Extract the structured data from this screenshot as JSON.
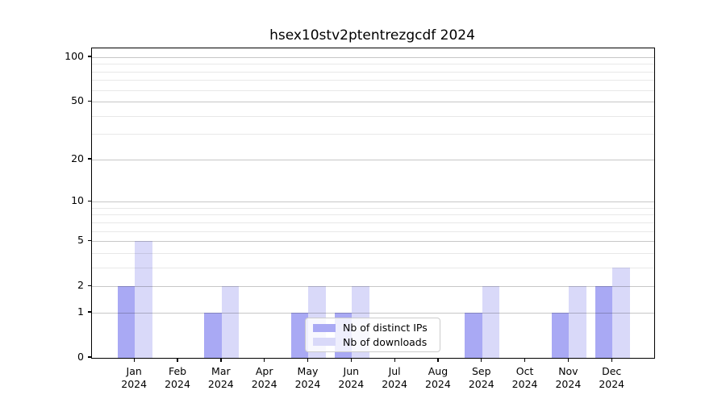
{
  "figure": {
    "background": "#ffffff",
    "axis_color": "#000000"
  },
  "chart_data": {
    "type": "bar",
    "title": "hsex10stv2ptentrezgcdf 2024",
    "categories": [
      "Jan",
      "Feb",
      "Mar",
      "Apr",
      "May",
      "Jun",
      "Jul",
      "Aug",
      "Sep",
      "Oct",
      "Nov",
      "Dec"
    ],
    "year": "2024",
    "series": [
      {
        "name": "Nb of distinct IPs",
        "color": "#a9a9f4",
        "values": [
          2,
          0,
          1,
          0,
          1,
          1,
          0,
          0,
          1,
          0,
          1,
          2
        ]
      },
      {
        "name": "Nb of downloads",
        "color": "#d9d9f9",
        "values": [
          5,
          0,
          2,
          0,
          2,
          2,
          0,
          0,
          2,
          0,
          2,
          3
        ]
      }
    ],
    "xlabel": "",
    "ylabel": "",
    "yscale": "log1p",
    "ylim": [
      0,
      100
    ],
    "y_ticks": [
      0,
      1,
      2,
      5,
      10,
      20,
      50,
      100
    ],
    "y_minor_ticks": [
      3,
      4,
      6,
      7,
      8,
      9,
      30,
      40,
      60,
      70,
      80,
      90
    ],
    "grid": "both",
    "legend_position": "lower-center"
  }
}
